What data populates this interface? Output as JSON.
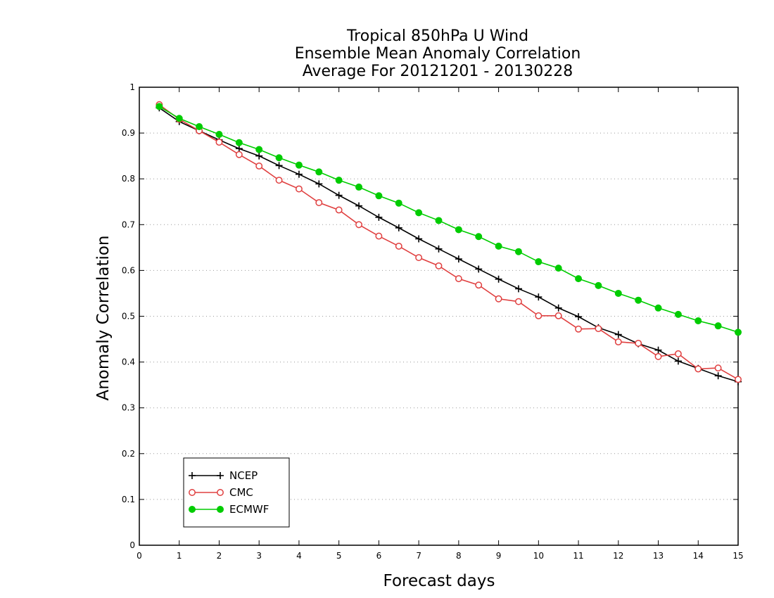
{
  "chart_data": {
    "type": "line",
    "title": [
      "Tropical 850hPa U Wind",
      "Ensemble Mean Anomaly Correlation",
      "Average For 20121201 - 20130228"
    ],
    "xlabel": "Forecast days",
    "ylabel": "Anomaly Correlation",
    "xlim": [
      0,
      15
    ],
    "ylim": [
      0,
      1
    ],
    "xticks": [
      "0",
      "1",
      "2",
      "3",
      "4",
      "5",
      "6",
      "7",
      "8",
      "9",
      "10",
      "11",
      "12",
      "13",
      "14",
      "15"
    ],
    "yticks": [
      "0",
      "0.1",
      "0.2",
      "0.3",
      "0.4",
      "0.5",
      "0.6",
      "0.7",
      "0.8",
      "0.9",
      "1"
    ],
    "grid": "horizontal-dotted",
    "legend_position": "bottom-left",
    "x": [
      0.5,
      1,
      1.5,
      2,
      2.5,
      3,
      3.5,
      4,
      4.5,
      5,
      5.5,
      6,
      6.5,
      7,
      7.5,
      8,
      8.5,
      9,
      9.5,
      10,
      10.5,
      11,
      11.5,
      12,
      12.5,
      13,
      13.5,
      14,
      14.5,
      15
    ],
    "series": [
      {
        "name": "NCEP",
        "color": "#000000",
        "marker": "plus",
        "values": [
          0.955,
          0.925,
          0.905,
          0.885,
          0.866,
          0.85,
          0.829,
          0.81,
          0.789,
          0.764,
          0.741,
          0.716,
          0.693,
          0.669,
          0.647,
          0.625,
          0.603,
          0.581,
          0.56,
          0.542,
          0.518,
          0.499,
          0.475,
          0.46,
          0.44,
          0.426,
          0.402,
          0.386,
          0.37,
          0.357
        ]
      },
      {
        "name": "CMC",
        "color": "#e04040",
        "marker": "open-circle",
        "values": [
          0.962,
          0.93,
          0.905,
          0.88,
          0.853,
          0.828,
          0.797,
          0.778,
          0.748,
          0.732,
          0.7,
          0.675,
          0.653,
          0.628,
          0.61,
          0.582,
          0.568,
          0.538,
          0.532,
          0.501,
          0.501,
          0.472,
          0.473,
          0.444,
          0.441,
          0.412,
          0.418,
          0.385,
          0.387,
          0.362
        ]
      },
      {
        "name": "ECMWF",
        "color": "#00cc00",
        "marker": "filled-circle",
        "values": [
          0.958,
          0.932,
          0.914,
          0.897,
          0.879,
          0.864,
          0.846,
          0.83,
          0.815,
          0.797,
          0.782,
          0.763,
          0.747,
          0.726,
          0.709,
          0.689,
          0.674,
          0.653,
          0.641,
          0.619,
          0.605,
          0.582,
          0.567,
          0.55,
          0.535,
          0.518,
          0.504,
          0.49,
          0.479,
          0.465
        ]
      }
    ]
  }
}
